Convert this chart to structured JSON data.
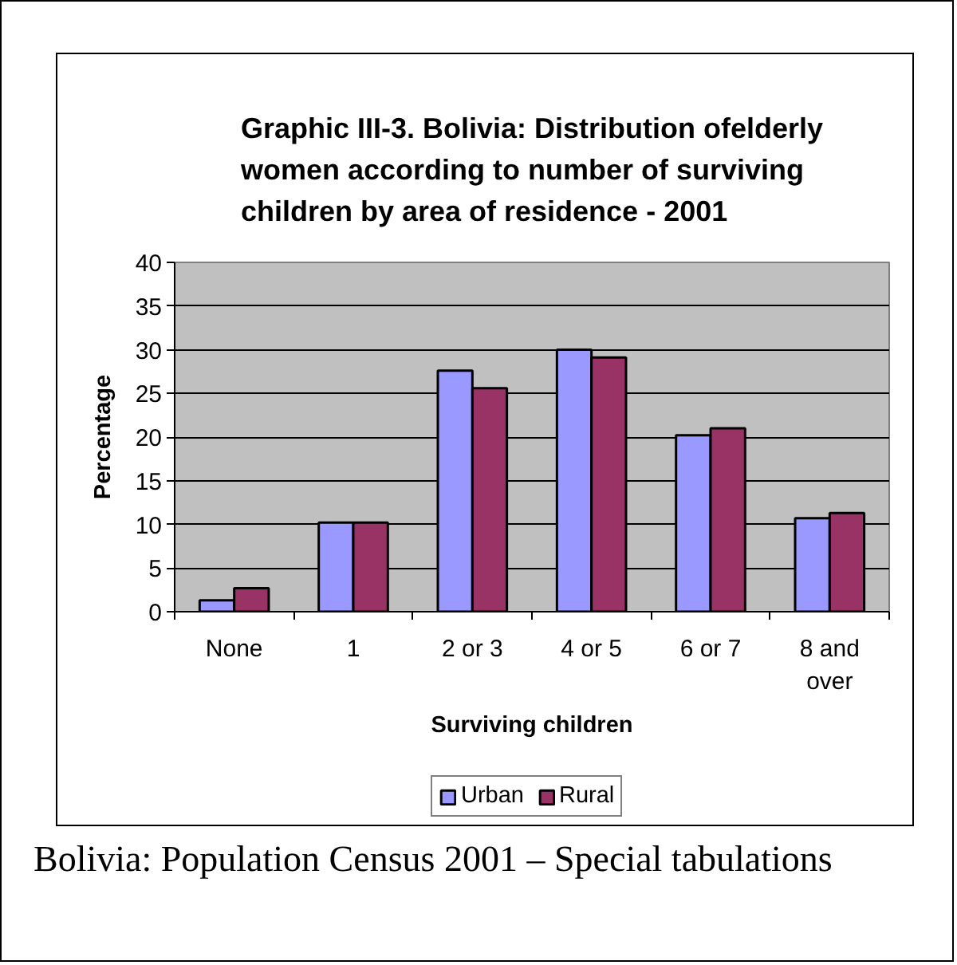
{
  "chart_data": {
    "type": "bar",
    "title": "Graphic III-3. Bolivia: Distribution ofelderly women according to number of surviving children by area of residence - 2001",
    "xlabel": "Surviving children",
    "ylabel": "Percentage",
    "categories": [
      "None",
      "1",
      "2 or 3",
      "4 or 5",
      "6 or 7",
      "8 and over"
    ],
    "series": [
      {
        "name": "Urban",
        "color": "#9999ff",
        "values": [
          1.3,
          10.2,
          27.6,
          30.0,
          20.2,
          10.7
        ]
      },
      {
        "name": "Rural",
        "color": "#993366",
        "values": [
          2.7,
          10.2,
          25.6,
          29.1,
          21.0,
          11.3
        ]
      }
    ],
    "ylim": [
      0,
      40
    ],
    "yticks": [
      0,
      5,
      10,
      15,
      20,
      25,
      30,
      35,
      40
    ],
    "grid": "y",
    "legend": "bottom",
    "annotations": [
      "Bolivia: Population Census 2001 – Special tabulations"
    ]
  }
}
